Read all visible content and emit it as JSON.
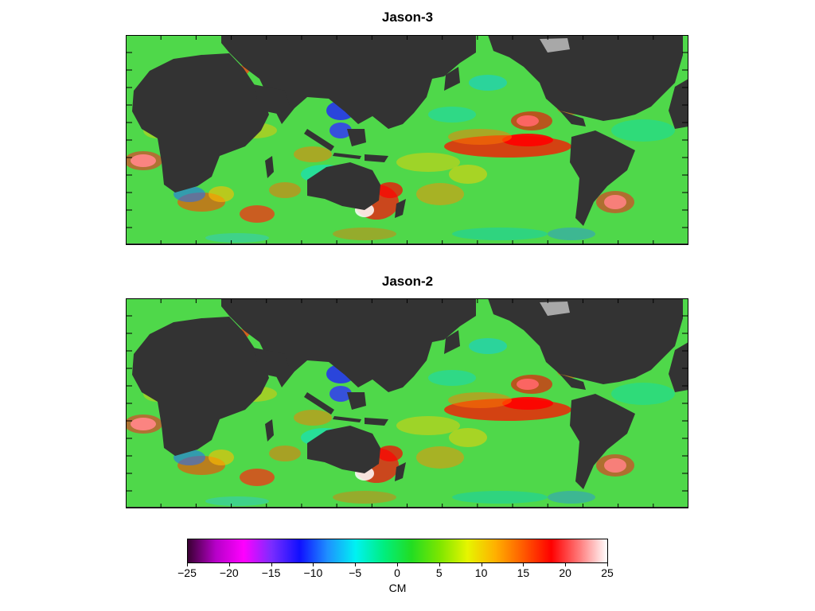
{
  "maps": [
    {
      "id": "top",
      "title": "Jason-3"
    },
    {
      "id": "bottom",
      "title": "Jason-2"
    }
  ],
  "colorbar": {
    "unit": "CM",
    "min": -25,
    "max": 25,
    "tick_values": [
      -25,
      -20,
      -15,
      -10,
      -5,
      0,
      5,
      10,
      15,
      20,
      25
    ],
    "tick_labels": [
      "−25",
      "−20",
      "−15",
      "−10",
      "−5",
      "0",
      "5",
      "10",
      "15",
      "20",
      "25"
    ],
    "colors": [
      "#3a0033",
      "#b600c8",
      "#ff00ff",
      "#7a2cff",
      "#1010ff",
      "#1e90ff",
      "#00f2f2",
      "#00ee80",
      "#22dd22",
      "#7ce600",
      "#e6f500",
      "#ffb000",
      "#ff5a00",
      "#ff0000",
      "#ff7a7a",
      "#ffffff"
    ]
  },
  "land_color": "#333333",
  "ice_color": "#a8a8a8",
  "ocean_base_color": "#4fd84a"
}
